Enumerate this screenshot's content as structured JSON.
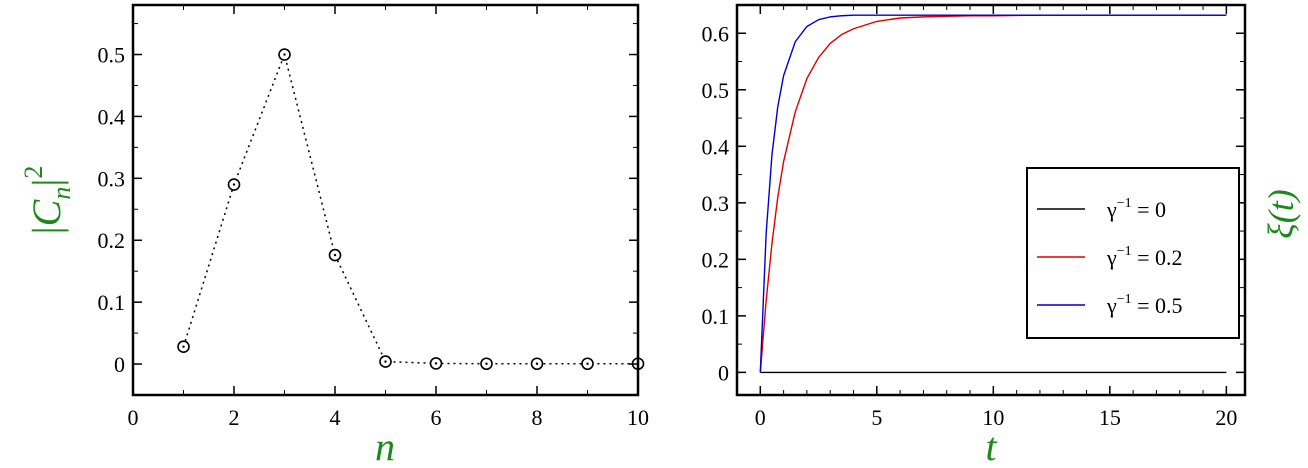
{
  "chart_data": [
    {
      "type": "scatter",
      "x": [
        1,
        2,
        3,
        4,
        5,
        6,
        7,
        8,
        9,
        10
      ],
      "y": [
        0.028,
        0.29,
        0.5,
        0.176,
        0.004,
        0.001,
        0.0005,
        0.0005,
        0.0005,
        0.0005
      ],
      "xlabel": "n",
      "ylabel": "|C_n|^2",
      "xlim": [
        0,
        10
      ],
      "ylim": [
        -0.05,
        0.58
      ],
      "xticks": [
        "0",
        "2",
        "4",
        "6",
        "8",
        "10"
      ],
      "yticks": [
        "0",
        "0.1",
        "0.2",
        "0.3",
        "0.4",
        "0.5"
      ],
      "marker": "open-circle-with-dot",
      "connector": "dotted",
      "grid": false,
      "colors": {
        "series": "#000000",
        "axis_title": "#1a8a1a"
      }
    },
    {
      "type": "line",
      "xlabel": "t",
      "ylabel": "ξ(t)",
      "xlim": [
        -1,
        20.8
      ],
      "ylim": [
        -0.04,
        0.65
      ],
      "xticks": [
        "0",
        "5",
        "10",
        "15",
        "20"
      ],
      "yticks": [
        "0",
        "0.1",
        "0.2",
        "0.3",
        "0.4",
        "0.5",
        "0.6"
      ],
      "x": [
        0,
        0.25,
        0.5,
        0.75,
        1,
        1.5,
        2,
        2.5,
        3,
        3.5,
        4,
        5,
        6,
        7,
        8,
        9,
        10,
        12,
        14,
        16,
        18,
        20
      ],
      "series": [
        {
          "name": "γ⁻¹ = 0",
          "color": "#000000",
          "values": [
            0,
            0,
            0,
            0,
            0,
            0,
            0,
            0,
            0,
            0,
            0,
            0,
            0,
            0,
            0,
            0,
            0,
            0,
            0,
            0,
            0,
            0
          ]
        },
        {
          "name": "γ⁻¹ = 0.2",
          "color": "#dd0000",
          "values": [
            0,
            0.126,
            0.228,
            0.31,
            0.373,
            0.461,
            0.52,
            0.557,
            0.582,
            0.598,
            0.608,
            0.621,
            0.627,
            0.629,
            0.63,
            0.631,
            0.631,
            0.632,
            0.632,
            0.632,
            0.632,
            0.632
          ]
        },
        {
          "name": "γ⁻¹ = 0.5",
          "color": "#0000cc",
          "values": [
            0,
            0.245,
            0.385,
            0.47,
            0.525,
            0.585,
            0.612,
            0.624,
            0.629,
            0.631,
            0.632,
            0.632,
            0.632,
            0.632,
            0.632,
            0.632,
            0.632,
            0.632,
            0.632,
            0.632,
            0.632,
            0.632
          ]
        }
      ],
      "legend": {
        "placement": "right",
        "entries": [
          {
            "base": "γ",
            "sup": "−1",
            "rest": " = 0"
          },
          {
            "base": "γ",
            "sup": "−1",
            "rest": " = 0.2"
          },
          {
            "base": "γ",
            "sup": "−1",
            "rest": " = 0.5"
          }
        ]
      },
      "grid": false,
      "colors": {
        "axis_title": "#1a8a1a"
      }
    }
  ]
}
